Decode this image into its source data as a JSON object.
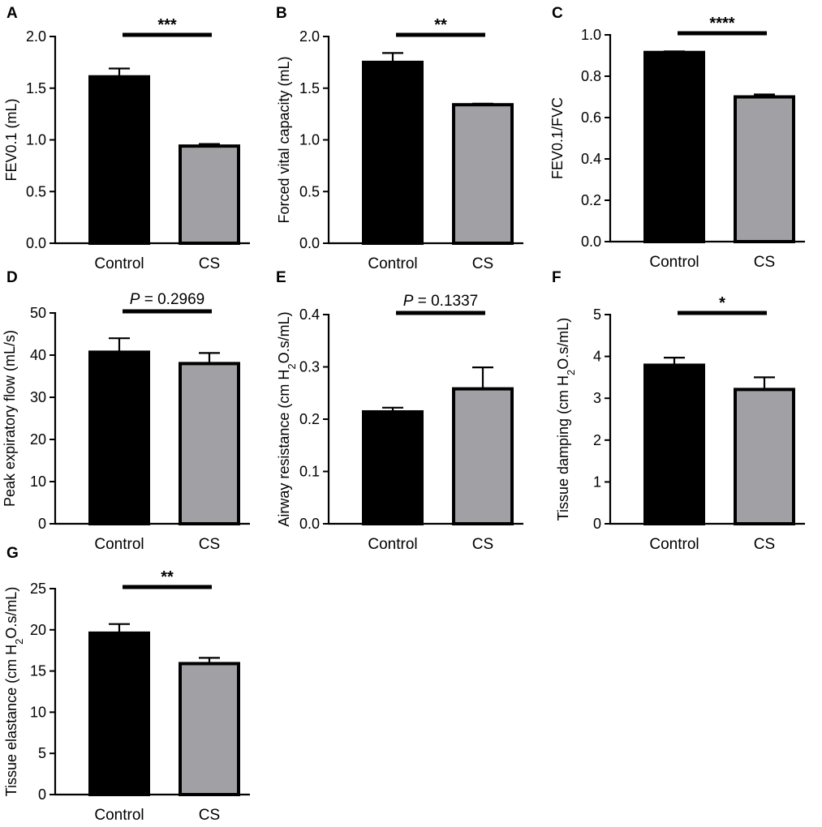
{
  "figure_colors": {
    "control": "#000000",
    "cs": "#a0a0a5",
    "axis": "#000000"
  },
  "chart_data": [
    {
      "type": "bar",
      "panel": "A",
      "categories": [
        "Control",
        "CS"
      ],
      "values": [
        1.61,
        0.94
      ],
      "errors": [
        0.08,
        0.02
      ],
      "ylabel": "FEV0.1 (mL)",
      "ylim": [
        0,
        2.0
      ],
      "ticks": [
        0,
        0.5,
        1.0,
        1.5,
        2.0
      ],
      "tick_labels": [
        "0.0",
        "0.5",
        "1.0",
        "1.5",
        "2.0"
      ],
      "significance": "***"
    },
    {
      "type": "bar",
      "panel": "B",
      "categories": [
        "Control",
        "CS"
      ],
      "values": [
        1.75,
        1.34
      ],
      "errors": [
        0.09,
        0.01
      ],
      "ylabel": "Forced vital capacity (mL)",
      "ylim": [
        0,
        2.0
      ],
      "ticks": [
        0,
        0.5,
        1.0,
        1.5,
        2.0
      ],
      "tick_labels": [
        "0.0",
        "0.5",
        "1.0",
        "1.5",
        "2.0"
      ],
      "significance": "**"
    },
    {
      "type": "bar",
      "panel": "C",
      "categories": [
        "Control",
        "CS"
      ],
      "values": [
        0.915,
        0.7
      ],
      "errors": [
        0.005,
        0.012
      ],
      "ylabel": "FEV0.1/FVC",
      "ylim": [
        0,
        1.0
      ],
      "ticks": [
        0,
        0.2,
        0.4,
        0.6,
        0.8,
        1.0
      ],
      "tick_labels": [
        "0.0",
        "0.2",
        "0.4",
        "0.6",
        "0.8",
        "1.0"
      ],
      "significance": "****"
    },
    {
      "type": "bar",
      "panel": "D",
      "categories": [
        "Control",
        "CS"
      ],
      "values": [
        40.7,
        38.0
      ],
      "errors": [
        3.3,
        2.5
      ],
      "ylabel": "Peak expiratory flow (mL/s)",
      "ylim": [
        0,
        50
      ],
      "ticks": [
        0,
        10,
        20,
        30,
        40,
        50
      ],
      "tick_labels": [
        "0",
        "10",
        "20",
        "30",
        "40",
        "50"
      ],
      "p_prefix": "P",
      "p_value": "= 0.2969"
    },
    {
      "type": "bar",
      "panel": "E",
      "categories": [
        "Control",
        "CS"
      ],
      "values": [
        0.214,
        0.258
      ],
      "errors": [
        0.008,
        0.041
      ],
      "ylabel_pre": "Airway resistance (cm H",
      "ylabel_sub": "2",
      "ylabel_post": "O.s/mL)",
      "ylim": [
        0,
        0.4
      ],
      "ticks": [
        0,
        0.1,
        0.2,
        0.3,
        0.4
      ],
      "tick_labels": [
        "0.0",
        "0.1",
        "0.2",
        "0.3",
        "0.4"
      ],
      "p_prefix": "P",
      "p_value": "= 0.1337"
    },
    {
      "type": "bar",
      "panel": "F",
      "categories": [
        "Control",
        "CS"
      ],
      "values": [
        3.79,
        3.21
      ],
      "errors": [
        0.18,
        0.29
      ],
      "ylabel_pre": "Tissue damping (cm H",
      "ylabel_sub": "2",
      "ylabel_post": "O.s/mL)",
      "ylim": [
        0,
        5
      ],
      "ticks": [
        0,
        1,
        2,
        3,
        4,
        5
      ],
      "tick_labels": [
        "0",
        "1",
        "2",
        "3",
        "4",
        "5"
      ],
      "significance": "*"
    },
    {
      "type": "bar",
      "panel": "G",
      "categories": [
        "Control",
        "CS"
      ],
      "values": [
        19.6,
        15.9
      ],
      "errors": [
        1.1,
        0.7
      ],
      "ylabel_pre": "Tissue elastance (cm H",
      "ylabel_sub": "2",
      "ylabel_post": "O.s/mL)",
      "ylim": [
        0,
        25
      ],
      "ticks": [
        0,
        5,
        10,
        15,
        20,
        25
      ],
      "tick_labels": [
        "0",
        "5",
        "10",
        "15",
        "20",
        "25"
      ],
      "significance": "**"
    }
  ]
}
